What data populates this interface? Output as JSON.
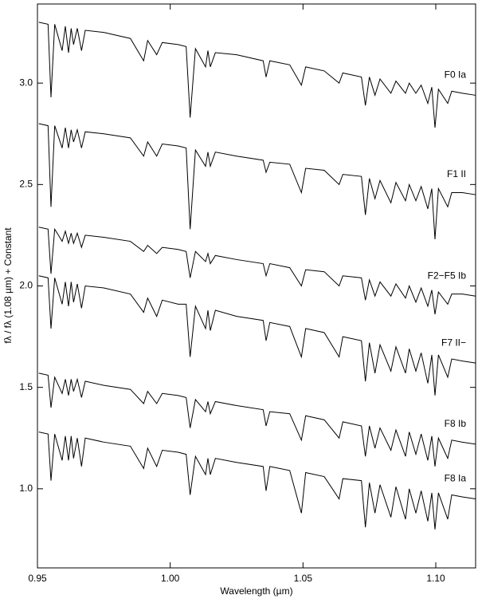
{
  "chart_data": {
    "type": "line",
    "xlabel": "Wavelength (µm)",
    "ylabel": "fλ / fλ (1.08 µm) + Constant",
    "xlim": [
      0.95,
      1.115
    ],
    "ylim": [
      0.61,
      3.39
    ],
    "xticks": [
      {
        "value": 0.95,
        "label": "0.95"
      },
      {
        "value": 1.0,
        "label": "1.00"
      },
      {
        "value": 1.05,
        "label": "1.05"
      },
      {
        "value": 1.1,
        "label": "1.10"
      }
    ],
    "yticks": [
      {
        "value": 1.0,
        "label": "1.0"
      },
      1.5,
      {
        "value": 2.0,
        "label": "2.0"
      },
      2.5,
      {
        "value": 3.0,
        "label": "3.0"
      }
    ],
    "grid": false,
    "x": [
      0.9505,
      0.954,
      0.9551,
      0.9565,
      0.9593,
      0.9605,
      0.9617,
      0.9627,
      0.9636,
      0.965,
      0.9666,
      0.968,
      0.975,
      0.985,
      0.99,
      0.9915,
      0.9949,
      0.997,
      1.003,
      1.006,
      1.0075,
      1.0095,
      1.0133,
      1.0142,
      1.0151,
      1.017,
      1.025,
      1.035,
      1.0361,
      1.0375,
      1.045,
      1.0494,
      1.051,
      1.058,
      1.0636,
      1.065,
      1.072,
      1.0735,
      1.075,
      1.0771,
      1.079,
      1.0831,
      1.085,
      1.0886,
      1.09,
      1.0925,
      1.0945,
      1.097,
      1.0985,
      1.0997,
      1.101,
      1.1045,
      1.106,
      1.11,
      1.115
    ],
    "series": [
      {
        "name": "F0 Ia",
        "color": "#000000",
        "values": [
          3.3,
          3.29,
          2.93,
          3.29,
          3.16,
          3.28,
          3.15,
          3.27,
          3.19,
          3.27,
          3.16,
          3.26,
          3.25,
          3.22,
          3.11,
          3.21,
          3.14,
          3.2,
          3.19,
          3.18,
          2.83,
          3.17,
          3.08,
          3.16,
          3.08,
          3.15,
          3.14,
          3.11,
          3.03,
          3.11,
          3.09,
          2.99,
          3.08,
          3.06,
          3.0,
          3.05,
          3.03,
          2.89,
          3.03,
          2.94,
          3.02,
          2.95,
          3.01,
          2.95,
          3.0,
          2.95,
          2.99,
          2.9,
          2.98,
          2.78,
          2.97,
          2.9,
          2.96,
          2.95,
          2.94
        ]
      },
      {
        "name": "F1 II",
        "color": "#000000",
        "values": [
          2.8,
          2.79,
          2.39,
          2.79,
          2.68,
          2.78,
          2.68,
          2.77,
          2.71,
          2.77,
          2.68,
          2.76,
          2.75,
          2.73,
          2.64,
          2.71,
          2.64,
          2.7,
          2.69,
          2.68,
          2.28,
          2.67,
          2.59,
          2.66,
          2.59,
          2.66,
          2.64,
          2.62,
          2.56,
          2.61,
          2.6,
          2.46,
          2.58,
          2.57,
          2.5,
          2.55,
          2.54,
          2.35,
          2.53,
          2.43,
          2.52,
          2.41,
          2.51,
          2.42,
          2.5,
          2.42,
          2.49,
          2.38,
          2.48,
          2.23,
          2.48,
          2.39,
          2.46,
          2.46,
          2.45
        ]
      },
      {
        "name": "F2−F5 Ib",
        "color": "#000000",
        "values": [
          2.29,
          2.28,
          2.06,
          2.28,
          2.22,
          2.27,
          2.21,
          2.26,
          2.21,
          2.26,
          2.19,
          2.25,
          2.24,
          2.22,
          2.17,
          2.2,
          2.16,
          2.19,
          2.18,
          2.17,
          2.04,
          2.17,
          2.12,
          2.16,
          2.11,
          2.15,
          2.13,
          2.11,
          2.05,
          2.11,
          2.09,
          2.0,
          2.08,
          2.07,
          2.0,
          2.05,
          2.04,
          1.93,
          2.03,
          1.95,
          2.02,
          1.95,
          2.01,
          1.94,
          2.0,
          1.92,
          1.99,
          1.9,
          1.98,
          1.86,
          1.97,
          1.91,
          1.96,
          1.96,
          1.95
        ]
      },
      {
        "name": "F7 II−",
        "color": "#000000",
        "values": [
          2.05,
          2.04,
          1.79,
          2.04,
          1.91,
          2.02,
          1.9,
          2.02,
          1.92,
          2.01,
          1.89,
          2.0,
          1.99,
          1.96,
          1.87,
          1.94,
          1.85,
          1.93,
          1.91,
          1.91,
          1.65,
          1.9,
          1.79,
          1.88,
          1.78,
          1.88,
          1.85,
          1.83,
          1.73,
          1.82,
          1.8,
          1.65,
          1.79,
          1.77,
          1.65,
          1.75,
          1.73,
          1.53,
          1.72,
          1.57,
          1.71,
          1.58,
          1.7,
          1.57,
          1.69,
          1.58,
          1.67,
          1.52,
          1.66,
          1.46,
          1.66,
          1.55,
          1.64,
          1.63,
          1.62
        ]
      },
      {
        "name": "F8 Ib",
        "color": "#000000",
        "values": [
          1.57,
          1.56,
          1.4,
          1.55,
          1.47,
          1.54,
          1.46,
          1.54,
          1.48,
          1.54,
          1.45,
          1.53,
          1.51,
          1.49,
          1.42,
          1.48,
          1.42,
          1.47,
          1.46,
          1.45,
          1.3,
          1.44,
          1.38,
          1.43,
          1.37,
          1.43,
          1.41,
          1.39,
          1.31,
          1.38,
          1.37,
          1.24,
          1.36,
          1.34,
          1.25,
          1.33,
          1.31,
          1.16,
          1.31,
          1.2,
          1.3,
          1.19,
          1.29,
          1.16,
          1.28,
          1.17,
          1.27,
          1.14,
          1.26,
          1.11,
          1.25,
          1.15,
          1.24,
          1.23,
          1.22
        ]
      },
      {
        "name": "F8 Ia",
        "color": "#000000",
        "values": [
          1.28,
          1.27,
          1.04,
          1.27,
          1.14,
          1.26,
          1.14,
          1.26,
          1.15,
          1.25,
          1.11,
          1.25,
          1.23,
          1.21,
          1.1,
          1.2,
          1.11,
          1.19,
          1.18,
          1.17,
          0.97,
          1.16,
          1.07,
          1.15,
          1.07,
          1.15,
          1.13,
          1.11,
          0.99,
          1.11,
          1.09,
          0.88,
          1.08,
          1.06,
          0.95,
          1.05,
          1.04,
          0.81,
          1.03,
          0.88,
          1.02,
          0.86,
          1.01,
          0.85,
          1.0,
          0.88,
          0.99,
          0.84,
          0.98,
          0.8,
          0.98,
          0.85,
          0.97,
          0.96,
          0.95
        ]
      }
    ]
  }
}
